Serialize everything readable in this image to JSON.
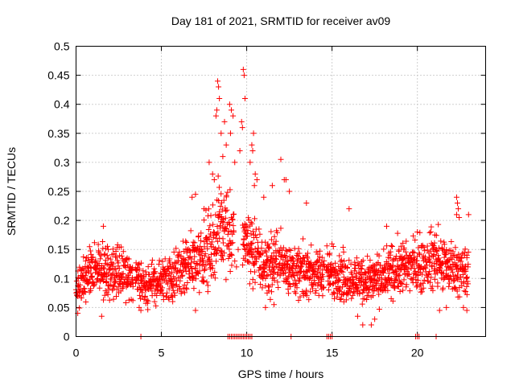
{
  "chart_data": {
    "type": "scatter",
    "title": "Day 181 of 2021, SRMTID for receiver av09",
    "xlabel": "GPS time / hours",
    "ylabel": "SRMTID / TECUs",
    "xlim": [
      0,
      24
    ],
    "ylim": [
      0,
      0.5
    ],
    "x_ticks": [
      0,
      5,
      10,
      15,
      20
    ],
    "x_tick_labels": [
      "0",
      "5",
      "10",
      "15",
      "20"
    ],
    "y_ticks": [
      0,
      0.05,
      0.1,
      0.15,
      0.2,
      0.25,
      0.3,
      0.35,
      0.4,
      0.45,
      0.5
    ],
    "y_tick_labels": [
      "0",
      "0.05",
      "0.1",
      "0.15",
      "0.2",
      "0.25",
      "0.3",
      "0.35",
      "0.4",
      "0.45",
      "0.5"
    ],
    "grid": true,
    "marker": "plus",
    "colors": {
      "series": "#ff0000",
      "axis": "#000000",
      "grid": "#a0a0a0"
    },
    "series": [
      {
        "name": "SRMTID",
        "baseline_profile": [
          [
            0.0,
            0.08
          ],
          [
            0.5,
            0.1
          ],
          [
            1.0,
            0.12
          ],
          [
            2.0,
            0.11
          ],
          [
            3.0,
            0.11
          ],
          [
            3.5,
            0.1
          ],
          [
            4.0,
            0.09
          ],
          [
            5.0,
            0.095
          ],
          [
            6.0,
            0.11
          ],
          [
            7.0,
            0.13
          ],
          [
            8.0,
            0.16
          ],
          [
            8.5,
            0.2
          ],
          [
            9.0,
            0.18
          ],
          [
            9.5,
            0.17
          ],
          [
            10.0,
            0.16
          ],
          [
            10.5,
            0.14
          ],
          [
            11.0,
            0.12
          ],
          [
            12.0,
            0.13
          ],
          [
            13.0,
            0.11
          ],
          [
            14.0,
            0.11
          ],
          [
            15.0,
            0.11
          ],
          [
            16.0,
            0.1
          ],
          [
            17.0,
            0.1
          ],
          [
            18.0,
            0.1
          ],
          [
            19.0,
            0.12
          ],
          [
            20.0,
            0.12
          ],
          [
            21.0,
            0.13
          ],
          [
            22.0,
            0.12
          ],
          [
            23.0,
            0.11
          ]
        ],
        "highlight_points": [
          [
            8.3,
            0.44
          ],
          [
            8.35,
            0.43
          ],
          [
            8.4,
            0.41
          ],
          [
            8.2,
            0.38
          ],
          [
            8.25,
            0.39
          ],
          [
            8.5,
            0.35
          ],
          [
            8.7,
            0.37
          ],
          [
            9.0,
            0.4
          ],
          [
            9.1,
            0.39
          ],
          [
            9.05,
            0.35
          ],
          [
            9.2,
            0.38
          ],
          [
            9.8,
            0.46
          ],
          [
            9.85,
            0.45
          ],
          [
            9.9,
            0.41
          ],
          [
            9.7,
            0.37
          ],
          [
            9.75,
            0.36
          ],
          [
            10.4,
            0.35
          ],
          [
            10.3,
            0.33
          ],
          [
            10.35,
            0.32
          ],
          [
            8.8,
            0.33
          ],
          [
            8.6,
            0.31
          ],
          [
            7.8,
            0.3
          ],
          [
            8.0,
            0.28
          ],
          [
            8.1,
            0.27
          ],
          [
            9.3,
            0.3
          ],
          [
            9.6,
            0.32
          ],
          [
            10.2,
            0.3
          ],
          [
            10.5,
            0.28
          ],
          [
            10.6,
            0.27
          ],
          [
            10.45,
            0.26
          ],
          [
            12.0,
            0.305
          ],
          [
            12.2,
            0.27
          ],
          [
            12.3,
            0.27
          ],
          [
            11.5,
            0.26
          ],
          [
            7.0,
            0.245
          ],
          [
            6.8,
            0.24
          ],
          [
            7.5,
            0.22
          ],
          [
            22.3,
            0.24
          ],
          [
            22.35,
            0.23
          ],
          [
            22.4,
            0.22
          ],
          [
            22.3,
            0.21
          ],
          [
            22.45,
            0.205
          ],
          [
            16.0,
            0.22
          ],
          [
            13.5,
            0.23
          ],
          [
            23.0,
            0.21
          ],
          [
            18.2,
            0.19
          ],
          [
            1.6,
            0.19
          ],
          [
            11.0,
            0.24
          ],
          [
            12.5,
            0.25
          ],
          [
            20.0,
            0.18
          ],
          [
            17.5,
            0.03
          ],
          [
            17.3,
            0.02
          ],
          [
            16.8,
            0.02
          ],
          [
            16.5,
            0.035
          ],
          [
            21.3,
            0.045
          ],
          [
            21.7,
            0.05
          ],
          [
            22.7,
            0.05
          ],
          [
            22.9,
            0.045
          ],
          [
            11.1,
            0.05
          ],
          [
            11.6,
            0.055
          ],
          [
            3.7,
            0.05
          ],
          [
            3.8,
            0.045
          ],
          [
            0.1,
            0.04
          ],
          [
            1.5,
            0.035
          ],
          [
            4.6,
            0.06
          ],
          [
            7.0,
            0.045
          ],
          [
            9.3,
            0.13
          ],
          [
            9.5,
            0.15
          ],
          [
            9.4,
            0.12
          ]
        ],
        "zero_values_at_hours": [
          3.8,
          8.9,
          9.0,
          9.1,
          9.2,
          9.3,
          9.4,
          9.5,
          9.6,
          9.7,
          9.8,
          9.9,
          10.0,
          10.1,
          10.2,
          10.3,
          12.6,
          14.7,
          14.8,
          14.9,
          15.0,
          19.9,
          20.0,
          20.1,
          21.1
        ]
      }
    ]
  }
}
